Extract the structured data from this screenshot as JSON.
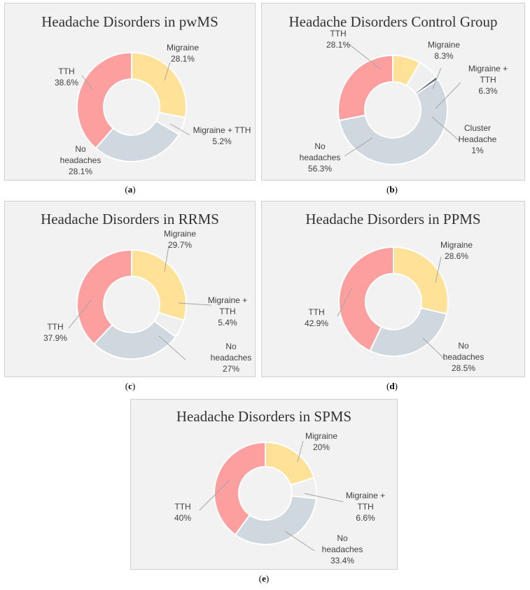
{
  "colors": {
    "Migraine": "#ffe197",
    "Migraine + TTH": "#efefef",
    "No headaches": "#cfd7df",
    "TTH": "#fd9f9f",
    "Cluster Headache": "#5b6b7a",
    "leader": "#a6a6a6"
  },
  "chart_data": [
    {
      "type": "pie",
      "title": "Headache Disorders in pwMS",
      "caption": "a",
      "slices": [
        {
          "label": "Migraine",
          "value": 28.1,
          "display": "28.1%",
          "text": [
            "Migraine",
            "28.1%"
          ]
        },
        {
          "label": "Migraine + TTH",
          "value": 5.2,
          "display": "5.2%",
          "text": [
            "Migraine + TTH",
            "5.2%"
          ]
        },
        {
          "label": "No headaches",
          "value": 28.1,
          "display": "28.1%",
          "text": [
            "No",
            "headaches",
            "28.1%"
          ]
        },
        {
          "label": "TTH",
          "value": 38.6,
          "display": "38.6%",
          "text": [
            "TTH",
            "38.6%"
          ]
        }
      ]
    },
    {
      "type": "pie",
      "title": "Headache Disorders Control Group",
      "caption": "b",
      "slices": [
        {
          "label": "Migraine",
          "value": 8.3,
          "display": "8.3%",
          "text": [
            "Migraine",
            "8.3%"
          ]
        },
        {
          "label": "Migraine + TTH",
          "value": 6.3,
          "display": "6.3%",
          "text": [
            "Migraine +",
            "TTH",
            "6.3%"
          ]
        },
        {
          "label": "Cluster Headache",
          "value": 1,
          "display": "1%",
          "text": [
            "Cluster",
            "Headache",
            "1%"
          ]
        },
        {
          "label": "No headaches",
          "value": 56.3,
          "display": "56.3%",
          "text": [
            "No",
            "headaches",
            "56.3%"
          ]
        },
        {
          "label": "TTH",
          "value": 28.1,
          "display": "28.1%",
          "text": [
            "TTH",
            "28.1%"
          ]
        }
      ]
    },
    {
      "type": "pie",
      "title": "Headache Disorders in RRMS",
      "caption": "c",
      "slices": [
        {
          "label": "Migraine",
          "value": 29.7,
          "display": "29.7%",
          "text": [
            "Migraine",
            "29.7%"
          ]
        },
        {
          "label": "Migraine + TTH",
          "value": 5.4,
          "display": "5.4%",
          "text": [
            "Migraine +",
            "TTH",
            "5.4%"
          ]
        },
        {
          "label": "No headaches",
          "value": 27,
          "display": "27%",
          "text": [
            "No",
            "headaches",
            "27%"
          ]
        },
        {
          "label": "TTH",
          "value": 37.9,
          "display": "37.9%",
          "text": [
            "TTH",
            "37.9%"
          ]
        }
      ]
    },
    {
      "type": "pie",
      "title": "Headache Disorders in PPMS",
      "caption": "d",
      "slices": [
        {
          "label": "Migraine",
          "value": 28.6,
          "display": "28.6%",
          "text": [
            "Migraine",
            "28.6%"
          ]
        },
        {
          "label": "No headaches",
          "value": 28.5,
          "display": "28.5%",
          "text": [
            "No",
            "headaches",
            "28.5%"
          ]
        },
        {
          "label": "TTH",
          "value": 42.9,
          "display": "42.9%",
          "text": [
            "TTH",
            "42.9%"
          ]
        }
      ]
    },
    {
      "type": "pie",
      "title": "Headache Disorders in SPMS",
      "caption": "e",
      "slices": [
        {
          "label": "Migraine",
          "value": 20,
          "display": "20%",
          "text": [
            "Migraine",
            "20%"
          ]
        },
        {
          "label": "Migraine + TTH",
          "value": 6.6,
          "display": "6.6%",
          "text": [
            "Migraine +",
            "TTH",
            "6.6%"
          ]
        },
        {
          "label": "No headaches",
          "value": 33.4,
          "display": "33.4%",
          "text": [
            "No",
            "headaches",
            "33.4%"
          ]
        },
        {
          "label": "TTH",
          "value": 40,
          "display": "40%",
          "text": [
            "TTH",
            "40%"
          ]
        }
      ]
    }
  ]
}
